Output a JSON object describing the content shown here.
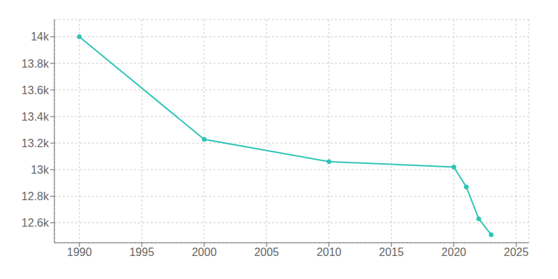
{
  "chart_data": {
    "type": "line",
    "x": [
      1990,
      2000,
      2010,
      2020,
      2021,
      2022,
      2023
    ],
    "values": [
      14000,
      13228,
      13060,
      13020,
      12870,
      12630,
      12510
    ],
    "color": "#2ec4b6",
    "marker": "circle",
    "xlim": [
      1988,
      2026
    ],
    "ylim": [
      12450,
      14130
    ],
    "xticks": [
      1990,
      1995,
      2000,
      2005,
      2010,
      2015,
      2020,
      2025
    ],
    "yticks": [
      {
        "value": 12600,
        "label": "12.6k"
      },
      {
        "value": 12800,
        "label": "12.8k"
      },
      {
        "value": 13000,
        "label": "13k"
      },
      {
        "value": 13200,
        "label": "13.2k"
      },
      {
        "value": 13400,
        "label": "13.4k"
      },
      {
        "value": 13600,
        "label": "13.6k"
      },
      {
        "value": 13800,
        "label": "13.8k"
      },
      {
        "value": 14000,
        "label": "14k"
      }
    ],
    "grid": true
  }
}
